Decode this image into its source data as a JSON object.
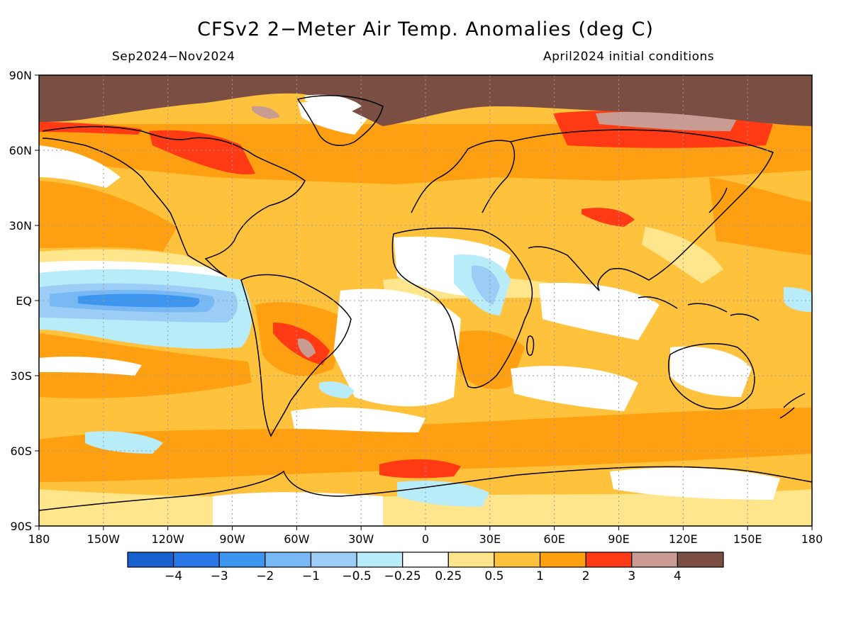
{
  "title": "CFSv2 2−Meter Air Temp. Anomalies (deg C)",
  "period": "Sep2024−Nov2024",
  "initial_conditions": "April2024 initial conditions",
  "axes": {
    "lon_labels": [
      "180",
      "150W",
      "120W",
      "90W",
      "60W",
      "30W",
      "0",
      "30E",
      "60E",
      "90E",
      "120E",
      "150E",
      "180"
    ],
    "lat_labels": [
      "90N",
      "60N",
      "30N",
      "EQ",
      "30S",
      "60S",
      "90S"
    ]
  },
  "colorbar": {
    "labels": [
      "−4",
      "−3",
      "−2",
      "−1",
      "−0.5",
      "−0.25",
      "0.25",
      "0.5",
      "1",
      "2",
      "3",
      "4"
    ],
    "colors": [
      "#1660d0",
      "#2a78e8",
      "#3c96f0",
      "#78b8f4",
      "#9ccdf6",
      "#b8ecf8",
      "#ffffff",
      "#ffe68c",
      "#ffc23c",
      "#ffa013",
      "#ff3a14",
      "#c89c92",
      "#7a4e42"
    ]
  },
  "palette": {
    "land_outline": "#000000",
    "grid": "#9a9a9a"
  }
}
